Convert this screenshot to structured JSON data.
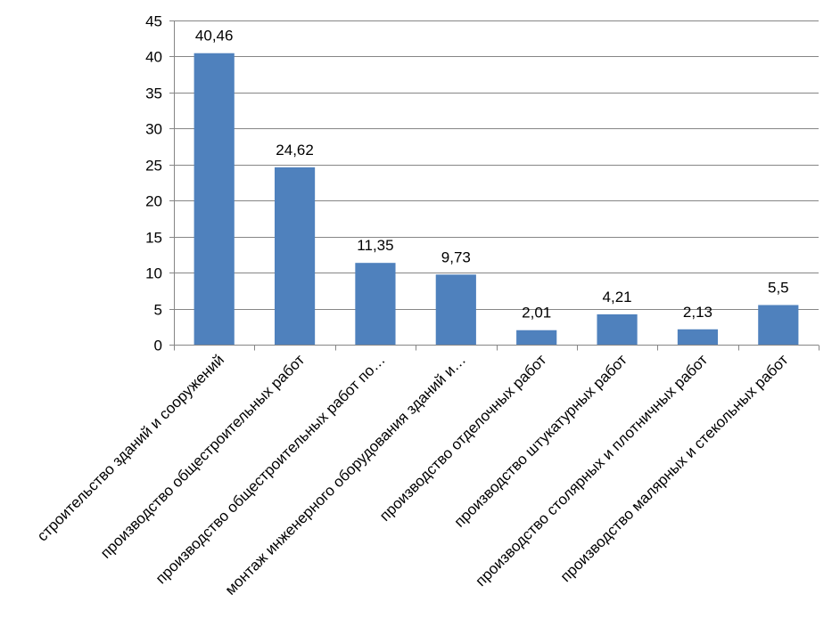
{
  "chart_data": {
    "type": "bar",
    "categories": [
      "строительство зданий и сооружений",
      "производство общестроительных работ",
      "производство общестроительных работ по…",
      "монтаж инженерного оборудования зданий и…",
      "производство отделочных работ",
      "производство штукатурных работ",
      "производство столярных и плотничных работ",
      "производство малярных и стекольных работ"
    ],
    "values": [
      40.46,
      24.62,
      11.35,
      9.73,
      2.01,
      4.21,
      2.13,
      5.5
    ],
    "data_labels": [
      "40,46",
      "24,62",
      "11,35",
      "9,73",
      "2,01",
      "4,21",
      "2,13",
      "5,5"
    ],
    "ylim": [
      0,
      45
    ],
    "yticks": [
      0,
      5,
      10,
      15,
      20,
      25,
      30,
      35,
      40,
      45
    ],
    "title": "",
    "xlabel": "",
    "ylabel": "",
    "grid": true,
    "bar_color": "#4F81BD"
  }
}
